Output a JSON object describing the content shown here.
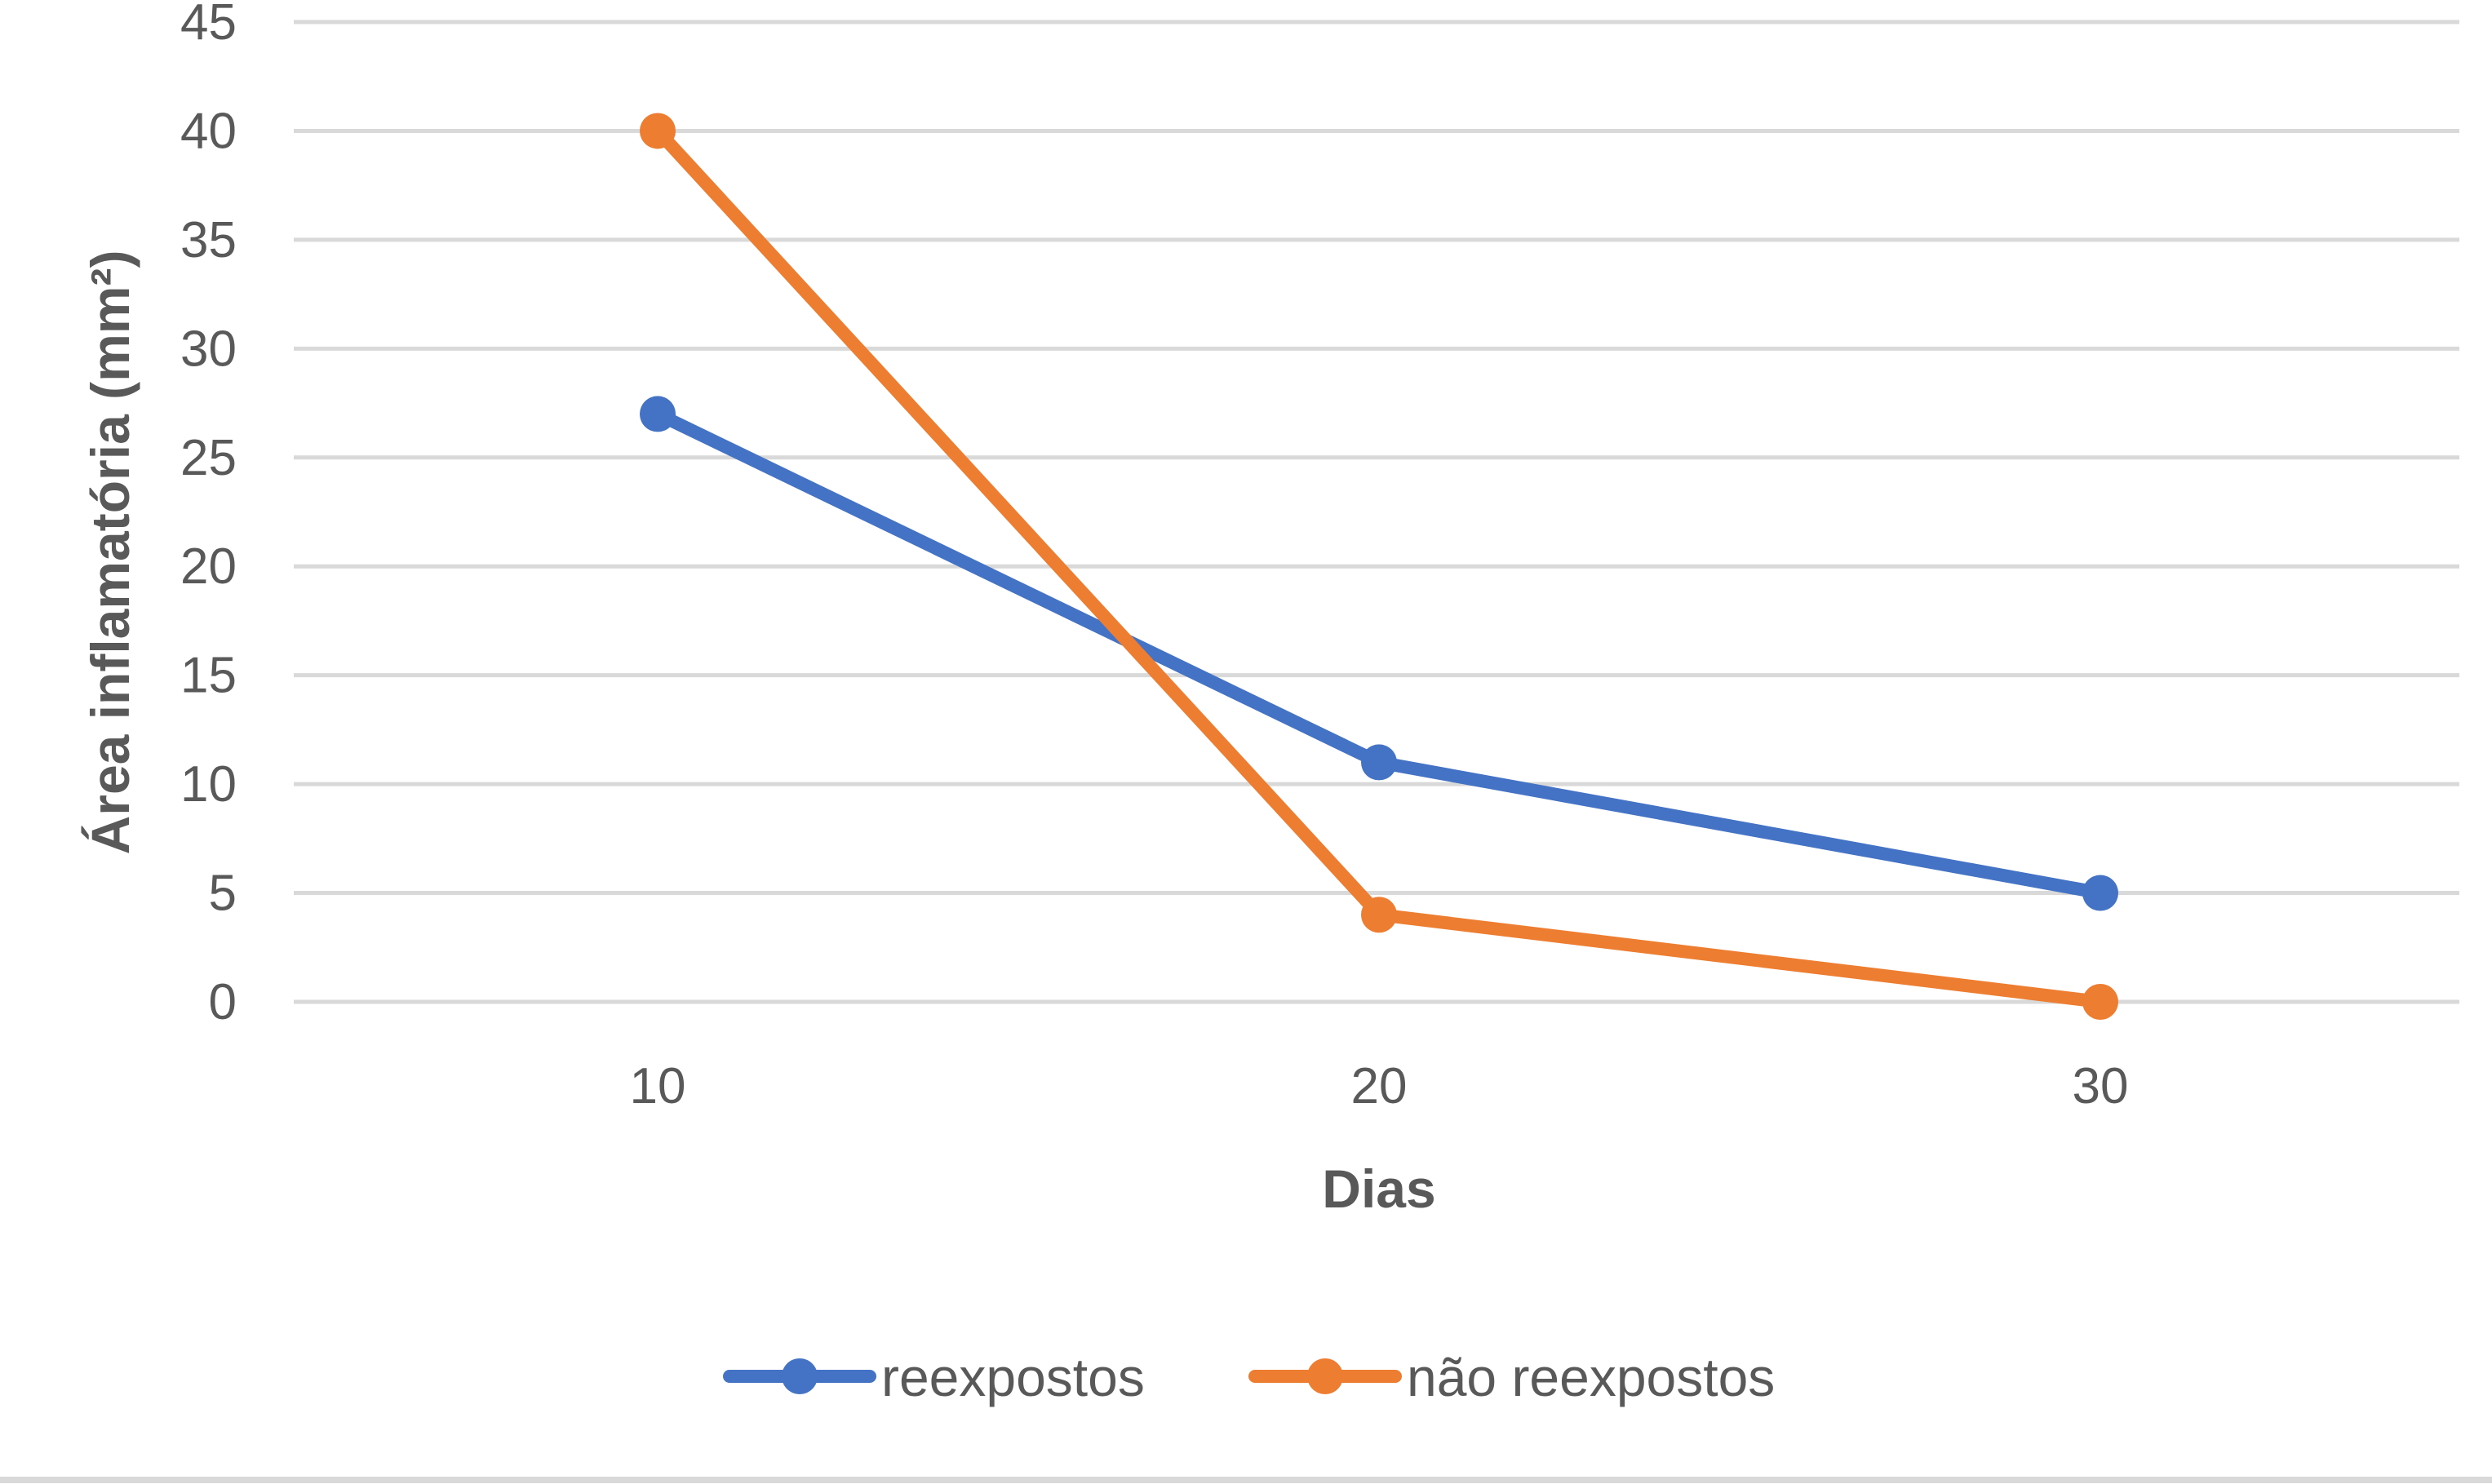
{
  "chart_data": {
    "type": "line",
    "categories": [
      "10",
      "20",
      "30"
    ],
    "x": [
      10,
      20,
      30
    ],
    "series": [
      {
        "name": "reexpostos",
        "values": [
          27,
          11,
          5
        ],
        "color": "#4472c4"
      },
      {
        "name": "não reexpostos",
        "values": [
          40,
          4,
          0
        ],
        "color": "#ed7d31"
      }
    ],
    "title": "",
    "xlabel": "Dias",
    "ylabel": "Área inflamatória (mm²)",
    "ylim": [
      0,
      45
    ],
    "yticks": [
      0,
      5,
      10,
      15,
      20,
      25,
      30,
      35,
      40,
      45
    ],
    "grid": true,
    "legend_position": "bottom"
  }
}
